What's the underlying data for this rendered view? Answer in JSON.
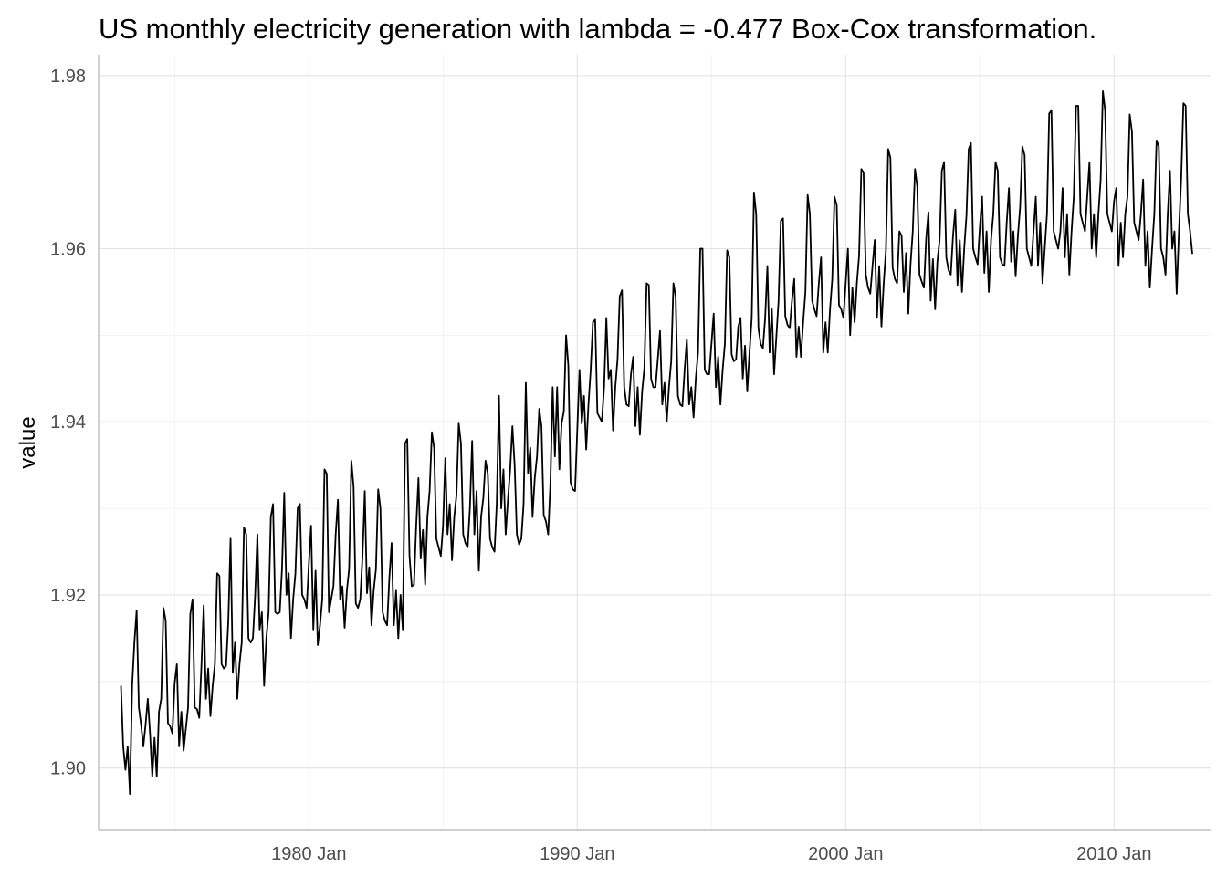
{
  "chart_data": {
    "type": "line",
    "title": "US monthly electricity generation with lambda = -0.477 Box-Cox transformation.",
    "xlabel": "",
    "ylabel": "value",
    "x_start": "1973-01",
    "x_end": "2010-12",
    "x_frequency": "monthly",
    "xlim": [
      "1972-03",
      "1982-01"
    ],
    "x_ticks": [
      "1980 Jan",
      "1990 Jan",
      "2000 Jan",
      "2010 Jan"
    ],
    "ylim": [
      1.8928,
      1.9824
    ],
    "y_ticks": [
      "1.90",
      "1.92",
      "1.94",
      "1.96",
      "1.98"
    ],
    "grid": true,
    "legend": "none",
    "line_color": "#000000",
    "series": [
      {
        "values": [
          1.9095,
          1.9025,
          1.8998,
          1.9025,
          1.897,
          1.9095,
          1.9145,
          1.9182,
          1.907,
          1.905,
          1.9025,
          1.905,
          1.908,
          1.904,
          1.899,
          1.9035,
          1.899,
          1.9065,
          1.908,
          1.9185,
          1.917,
          1.9052,
          1.9048,
          1.904,
          1.9098,
          1.912,
          1.9025,
          1.9065,
          1.902,
          1.9045,
          1.907,
          1.9178,
          1.9195,
          1.907,
          1.9068,
          1.9058,
          1.912,
          1.9188,
          1.908,
          1.9115,
          1.906,
          1.9095,
          1.912,
          1.9225,
          1.9222,
          1.912,
          1.9115,
          1.9118,
          1.917,
          1.9265,
          1.911,
          1.9145,
          1.908,
          1.912,
          1.9145,
          1.9278,
          1.927,
          1.915,
          1.9145,
          1.915,
          1.92,
          1.927,
          1.916,
          1.918,
          1.9095,
          1.915,
          1.918,
          1.929,
          1.9305,
          1.918,
          1.9178,
          1.918,
          1.923,
          1.9318,
          1.92,
          1.9225,
          1.915,
          1.9195,
          1.9225,
          1.93,
          1.9305,
          1.92,
          1.9195,
          1.9185,
          1.9235,
          1.928,
          1.916,
          1.9228,
          1.9142,
          1.9165,
          1.9195,
          1.9345,
          1.934,
          1.918,
          1.9195,
          1.921,
          1.927,
          1.931,
          1.9195,
          1.921,
          1.9162,
          1.9205,
          1.923,
          1.9355,
          1.9325,
          1.919,
          1.9185,
          1.9195,
          1.9245,
          1.932,
          1.9202,
          1.9232,
          1.9165,
          1.9205,
          1.923,
          1.9322,
          1.93,
          1.918,
          1.917,
          1.9165,
          1.922,
          1.926,
          1.9165,
          1.9205,
          1.915,
          1.92,
          1.916,
          1.9375,
          1.938,
          1.9245,
          1.921,
          1.9212,
          1.928,
          1.9335,
          1.9242,
          1.9275,
          1.9212,
          1.929,
          1.932,
          1.9388,
          1.937,
          1.9265,
          1.9255,
          1.9245,
          1.928,
          1.9358,
          1.927,
          1.9305,
          1.924,
          1.929,
          1.9315,
          1.9398,
          1.9375,
          1.927,
          1.926,
          1.9255,
          1.93,
          1.9378,
          1.927,
          1.932,
          1.9228,
          1.929,
          1.9312,
          1.9355,
          1.934,
          1.9265,
          1.9255,
          1.925,
          1.9305,
          1.943,
          1.93,
          1.9345,
          1.927,
          1.931,
          1.9345,
          1.9395,
          1.935,
          1.927,
          1.9258,
          1.9265,
          1.9305,
          1.9445,
          1.934,
          1.937,
          1.929,
          1.9335,
          1.936,
          1.9415,
          1.9395,
          1.9292,
          1.9285,
          1.927,
          1.933,
          1.944,
          1.936,
          1.944,
          1.9345,
          1.9398,
          1.9412,
          1.95,
          1.9465,
          1.933,
          1.9322,
          1.932,
          1.939,
          1.946,
          1.9398,
          1.943,
          1.9368,
          1.942,
          1.946,
          1.9515,
          1.9518,
          1.941,
          1.9405,
          1.94,
          1.944,
          1.952,
          1.945,
          1.946,
          1.939,
          1.944,
          1.9472,
          1.9545,
          1.9552,
          1.944,
          1.942,
          1.9418,
          1.9455,
          1.9475,
          1.9395,
          1.944,
          1.9385,
          1.9435,
          1.9462,
          1.956,
          1.9558,
          1.945,
          1.944,
          1.944,
          1.9472,
          1.9505,
          1.942,
          1.9445,
          1.94,
          1.944,
          1.947,
          1.956,
          1.9545,
          1.943,
          1.942,
          1.9418,
          1.946,
          1.9495,
          1.942,
          1.944,
          1.9405,
          1.945,
          1.948,
          1.96,
          1.96,
          1.946,
          1.9455,
          1.9455,
          1.949,
          1.9525,
          1.944,
          1.9475,
          1.942,
          1.946,
          1.949,
          1.9598,
          1.959,
          1.9478,
          1.947,
          1.9472,
          1.951,
          1.952,
          1.945,
          1.9488,
          1.9435,
          1.948,
          1.952,
          1.9665,
          1.964,
          1.9508,
          1.949,
          1.9485,
          1.952,
          1.958,
          1.948,
          1.953,
          1.9455,
          1.9498,
          1.954,
          1.9632,
          1.9635,
          1.9522,
          1.9512,
          1.9508,
          1.954,
          1.9565,
          1.9475,
          1.951,
          1.9475,
          1.9515,
          1.955,
          1.9662,
          1.964,
          1.954,
          1.953,
          1.9522,
          1.956,
          1.959,
          1.948,
          1.9515,
          1.948,
          1.953,
          1.9565,
          1.966,
          1.965,
          1.9535,
          1.953,
          1.952,
          1.956,
          1.96,
          1.95,
          1.9555,
          1.9515,
          1.956,
          1.9592,
          1.9692,
          1.9688,
          1.957,
          1.9555,
          1.9548,
          1.958,
          1.961,
          1.952,
          1.958,
          1.951,
          1.956,
          1.9598,
          1.9715,
          1.9705,
          1.9578,
          1.9565,
          1.956,
          1.962,
          1.9615,
          1.955,
          1.9595,
          1.9525,
          1.9582,
          1.962,
          1.9692,
          1.9672,
          1.957,
          1.9562,
          1.9555,
          1.9612,
          1.9642,
          1.954,
          1.9588,
          1.953,
          1.9585,
          1.961,
          1.969,
          1.97,
          1.959,
          1.9575,
          1.957,
          1.9615,
          1.9645,
          1.9558,
          1.961,
          1.955,
          1.96,
          1.9638,
          1.9715,
          1.9722,
          1.96,
          1.959,
          1.9582,
          1.9625,
          1.966,
          1.9572,
          1.962,
          1.955,
          1.961,
          1.964,
          1.97,
          1.969,
          1.959,
          1.9582,
          1.958,
          1.963,
          1.967,
          1.9585,
          1.962,
          1.9568,
          1.9615,
          1.9648,
          1.9718,
          1.9708,
          1.96,
          1.959,
          1.958,
          1.962,
          1.966,
          1.958,
          1.963,
          1.956,
          1.96,
          1.964,
          1.9756,
          1.976,
          1.962,
          1.961,
          1.96,
          1.962,
          1.967,
          1.959,
          1.964,
          1.957,
          1.962,
          1.966,
          1.9765,
          1.9765,
          1.964,
          1.963,
          1.962,
          1.966,
          1.97,
          1.96,
          1.964,
          1.959,
          1.964,
          1.968,
          1.9782,
          1.976,
          1.964,
          1.963,
          1.962,
          1.9655,
          1.967,
          1.958,
          1.963,
          1.959,
          1.964,
          1.966,
          1.9755,
          1.9735,
          1.963,
          1.962,
          1.961,
          1.964,
          1.968,
          1.958,
          1.962,
          1.9555,
          1.96,
          1.964,
          1.9725,
          1.9718,
          1.96,
          1.959,
          1.957,
          1.964,
          1.969,
          1.96,
          1.962,
          1.9548,
          1.962,
          1.968,
          1.9768,
          1.9765,
          1.964,
          1.962,
          1.9594
        ]
      }
    ]
  }
}
